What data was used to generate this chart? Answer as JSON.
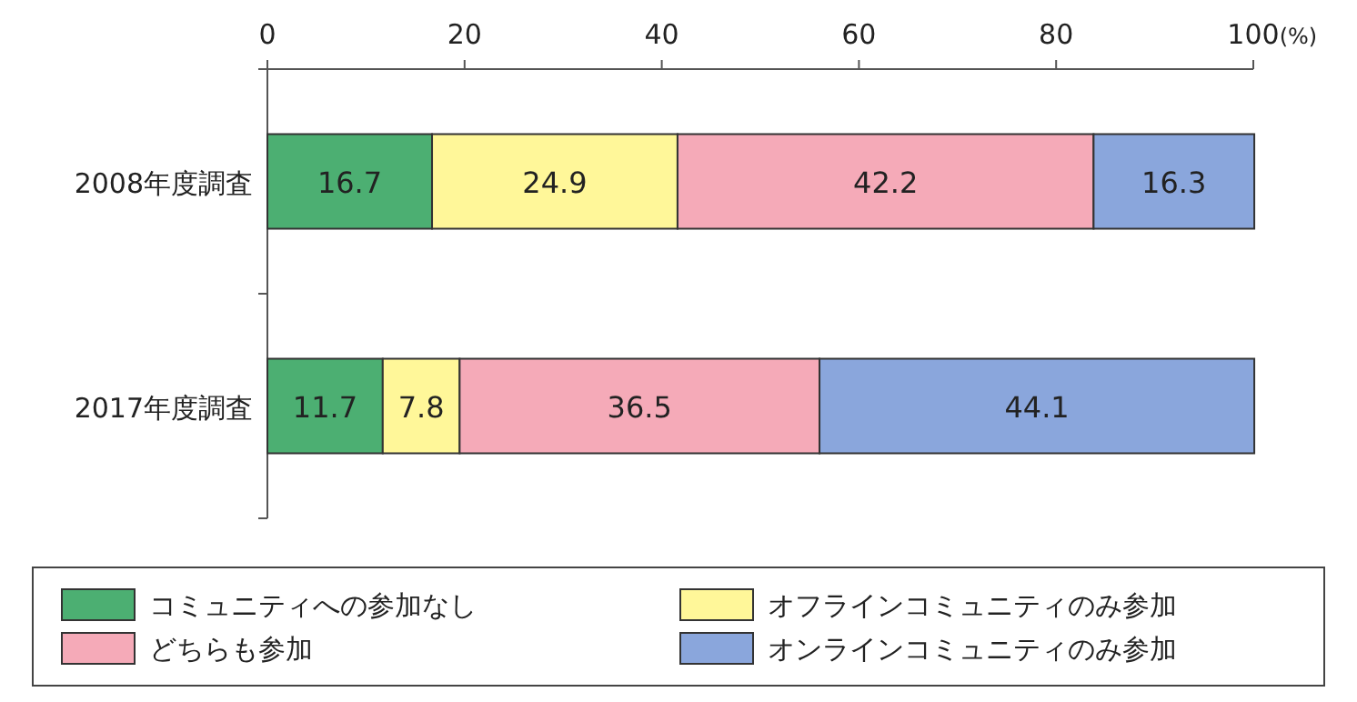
{
  "chart_data": {
    "type": "bar",
    "orientation": "horizontal",
    "stacked": true,
    "categories": [
      "2008年度調査",
      "2017年度調査"
    ],
    "xlim": [
      0,
      100
    ],
    "xticks": [
      0,
      20,
      40,
      60,
      80,
      {
        "value": 100,
        "label": "100(%)"
      }
    ],
    "data_labels": true,
    "legend": "bottom",
    "series": [
      {
        "name": "コミュニティへの参加なし",
        "color": "#4caf72",
        "values": [
          16.7,
          11.7
        ]
      },
      {
        "name": "オフラインコミュニティのみ参加",
        "color": "#fff799",
        "values": [
          24.9,
          7.8
        ]
      },
      {
        "name": "どちらも参加",
        "color": "#f5aab8",
        "values": [
          42.2,
          36.5
        ]
      },
      {
        "name": "オンラインコミュニティのみ参加",
        "color": "#8aa6dc",
        "values": [
          16.3,
          44.1
        ]
      }
    ]
  }
}
